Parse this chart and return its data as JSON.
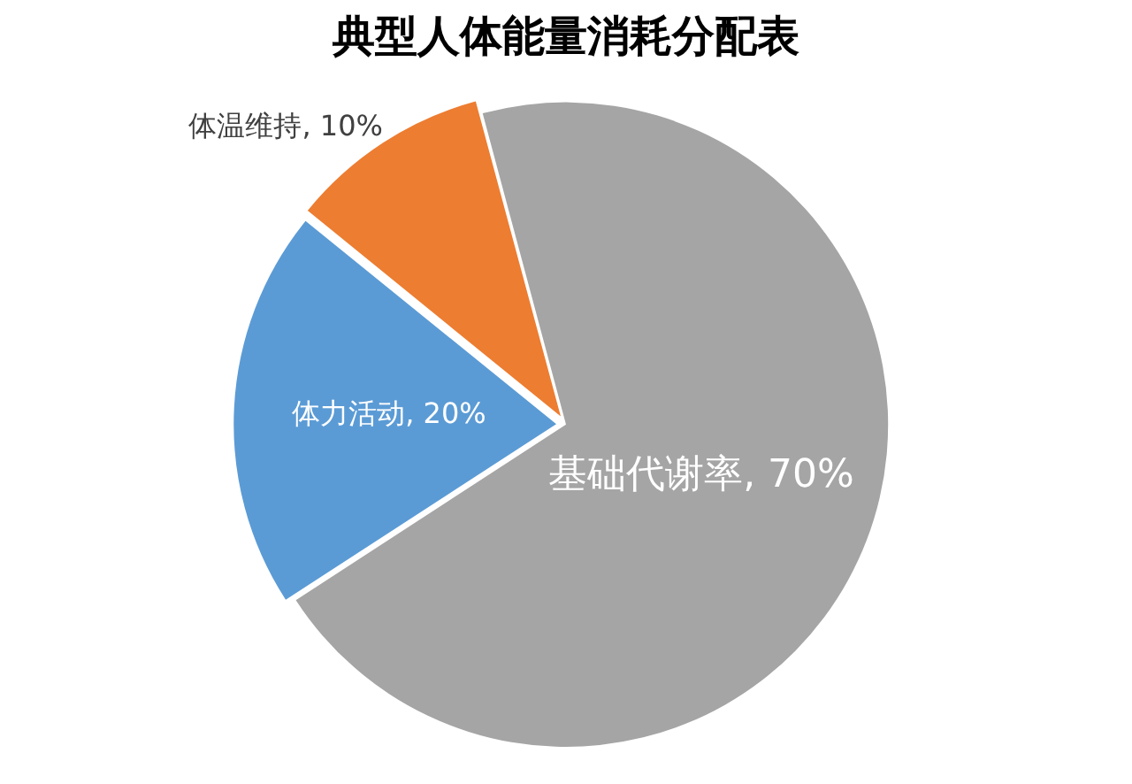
{
  "chart_data": {
    "type": "pie",
    "title": "典型人体能量消耗分配表",
    "categories": [
      "基础代谢率",
      "体力活动",
      "体温维持"
    ],
    "values": [
      70,
      20,
      10
    ],
    "value_labels": [
      "70%",
      "20%",
      "10%"
    ],
    "colors": [
      "#a5a5a5",
      "#5b9bd5",
      "#ed7d31"
    ],
    "legend": false
  }
}
